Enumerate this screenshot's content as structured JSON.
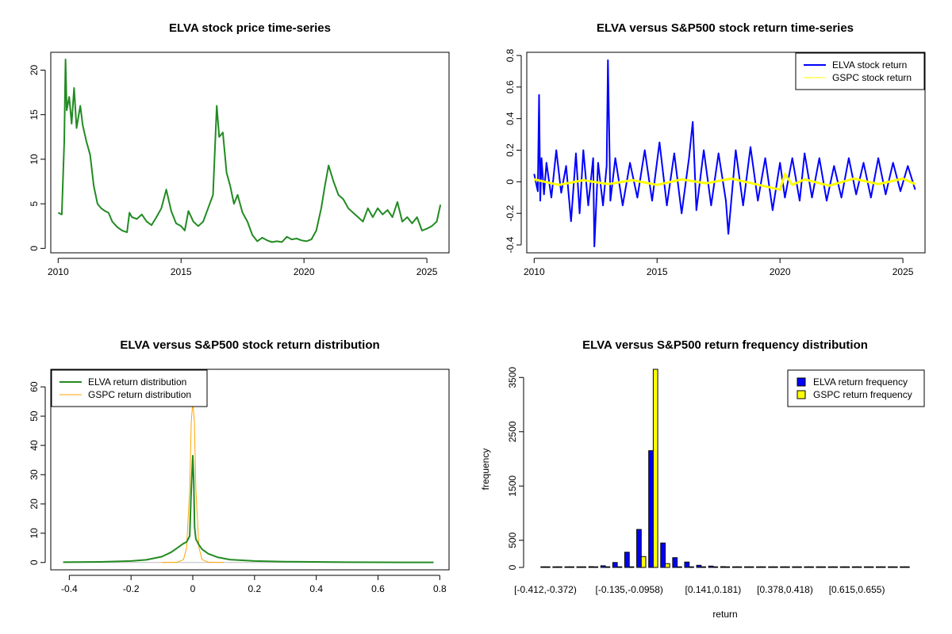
{
  "colors": {
    "elva_price": "#228B22",
    "elva_return": "#0000FF",
    "gspc_return": "#FFFF00",
    "elva_dist": "#228B22",
    "gspc_dist": "#FFA500",
    "elva_bar": "#0000FF",
    "gspc_bar": "#FFFF00"
  },
  "chart_data": [
    {
      "type": "line",
      "title": "ELVA stock price time-series",
      "xlabel": "",
      "ylabel": "",
      "xlim": [
        2009.7,
        2025.9
      ],
      "ylim": [
        -0.5,
        22
      ],
      "x_ticks": [
        2010,
        2015,
        2020,
        2025
      ],
      "y_ticks": [
        0,
        5,
        10,
        15,
        20
      ],
      "series": [
        {
          "x": [
            2010.0,
            2010.15,
            2010.25,
            2010.3,
            2010.35,
            2010.45,
            2010.55,
            2010.65,
            2010.75,
            2010.9,
            2011.0,
            2011.15,
            2011.3,
            2011.45,
            2011.6,
            2011.75,
            2011.9,
            2012.05,
            2012.2,
            2012.4,
            2012.6,
            2012.8,
            2012.9,
            2013.0,
            2013.2,
            2013.4,
            2013.6,
            2013.8,
            2014.0,
            2014.2,
            2014.4,
            2014.6,
            2014.8,
            2015.0,
            2015.15,
            2015.3,
            2015.5,
            2015.7,
            2015.9,
            2016.1,
            2016.3,
            2016.45,
            2016.55,
            2016.7,
            2016.85,
            2017.0,
            2017.15,
            2017.3,
            2017.5,
            2017.7,
            2017.9,
            2018.1,
            2018.3,
            2018.5,
            2018.7,
            2018.9,
            2019.1,
            2019.3,
            2019.5,
            2019.7,
            2019.9,
            2020.1,
            2020.3,
            2020.5,
            2020.7,
            2020.85,
            2021.0,
            2021.2,
            2021.4,
            2021.6,
            2021.8,
            2022.0,
            2022.2,
            2022.4,
            2022.6,
            2022.8,
            2023.0,
            2023.2,
            2023.4,
            2023.6,
            2023.8,
            2024.0,
            2024.2,
            2024.4,
            2024.6,
            2024.8,
            2025.0,
            2025.2,
            2025.4,
            2025.55
          ],
          "y": [
            4.0,
            3.8,
            12.0,
            21.2,
            15.5,
            17.0,
            14.0,
            18.0,
            13.5,
            16.0,
            13.8,
            12.0,
            10.5,
            7.0,
            5.0,
            4.5,
            4.2,
            4.0,
            3.0,
            2.4,
            2.0,
            1.8,
            4.0,
            3.5,
            3.3,
            3.8,
            3.0,
            2.6,
            3.5,
            4.5,
            6.6,
            4.2,
            2.8,
            2.5,
            2.0,
            4.2,
            3.0,
            2.5,
            3.0,
            4.5,
            6.0,
            16.0,
            12.5,
            13.0,
            8.5,
            7.0,
            5.0,
            6.0,
            4.0,
            3.0,
            1.5,
            0.8,
            1.2,
            0.9,
            0.7,
            0.8,
            0.7,
            1.3,
            1.0,
            1.1,
            0.9,
            0.8,
            1.0,
            2.0,
            4.5,
            7.0,
            9.3,
            7.5,
            6.0,
            5.5,
            4.5,
            4.0,
            3.5,
            3.0,
            4.5,
            3.5,
            4.5,
            3.8,
            4.3,
            3.5,
            5.2,
            3.0,
            3.5,
            2.8,
            3.5,
            2.0,
            2.2,
            2.5,
            3.0,
            4.9
          ]
        }
      ]
    },
    {
      "type": "line",
      "title": "ELVA versus S&P500 stock return time-series",
      "xlabel": "",
      "ylabel": "",
      "xlim": [
        2009.7,
        2025.9
      ],
      "ylim": [
        -0.45,
        0.82
      ],
      "x_ticks": [
        2010,
        2015,
        2020,
        2025
      ],
      "y_ticks": [
        -0.4,
        -0.2,
        0.0,
        0.2,
        0.4,
        0.6,
        0.8
      ],
      "legend": {
        "position": "top-right",
        "entries": [
          "ELVA stock return",
          "GSPC stock return"
        ]
      },
      "series": [
        {
          "name": "ELVA stock return",
          "x": [
            2010.0,
            2010.15,
            2010.2,
            2010.25,
            2010.3,
            2010.4,
            2010.5,
            2010.7,
            2010.9,
            2011.1,
            2011.3,
            2011.5,
            2011.7,
            2011.85,
            2012.0,
            2012.2,
            2012.4,
            2012.45,
            2012.6,
            2012.8,
            2012.95,
            2013.0,
            2013.1,
            2013.3,
            2013.6,
            2013.9,
            2014.2,
            2014.5,
            2014.8,
            2015.1,
            2015.4,
            2015.7,
            2016.0,
            2016.3,
            2016.45,
            2016.6,
            2016.9,
            2017.2,
            2017.5,
            2017.8,
            2017.9,
            2018.2,
            2018.5,
            2018.8,
            2019.1,
            2019.4,
            2019.7,
            2020.0,
            2020.2,
            2020.5,
            2020.8,
            2021.0,
            2021.3,
            2021.6,
            2021.9,
            2022.2,
            2022.5,
            2022.8,
            2023.1,
            2023.4,
            2023.7,
            2024.0,
            2024.3,
            2024.6,
            2024.9,
            2025.2,
            2025.5
          ],
          "y": [
            0.05,
            -0.06,
            0.55,
            -0.12,
            0.15,
            -0.08,
            0.12,
            -0.1,
            0.2,
            -0.07,
            0.1,
            -0.25,
            0.18,
            -0.2,
            0.2,
            -0.15,
            0.15,
            -0.41,
            0.12,
            -0.15,
            0.1,
            0.77,
            -0.12,
            0.15,
            -0.15,
            0.12,
            -0.1,
            0.2,
            -0.12,
            0.25,
            -0.15,
            0.18,
            -0.2,
            0.15,
            0.38,
            -0.18,
            0.2,
            -0.15,
            0.18,
            -0.12,
            -0.33,
            0.2,
            -0.15,
            0.22,
            -0.12,
            0.15,
            -0.18,
            0.12,
            -0.1,
            0.15,
            -0.12,
            0.18,
            -0.1,
            0.15,
            -0.12,
            0.1,
            -0.1,
            0.15,
            -0.08,
            0.12,
            -0.1,
            0.15,
            -0.08,
            0.12,
            -0.06,
            0.1,
            -0.05
          ]
        },
        {
          "name": "GSPC stock return",
          "x": [
            2010.0,
            2011.0,
            2012.0,
            2013.0,
            2014.0,
            2015.0,
            2016.0,
            2017.0,
            2018.0,
            2019.0,
            2020.0,
            2020.2,
            2020.5,
            2021.0,
            2022.0,
            2023.0,
            2024.0,
            2025.0,
            2025.5
          ],
          "y": [
            0.015,
            -0.02,
            0.01,
            -0.015,
            0.01,
            -0.02,
            0.015,
            -0.01,
            0.02,
            -0.015,
            -0.05,
            0.05,
            -0.02,
            0.015,
            -0.025,
            0.02,
            -0.015,
            0.02,
            -0.015
          ]
        }
      ]
    },
    {
      "type": "line",
      "title": "ELVA versus S&P500 stock return distribution",
      "xlabel": "",
      "ylabel": "",
      "xlim": [
        -0.46,
        0.83
      ],
      "ylim": [
        -2.5,
        66
      ],
      "x_ticks": [
        -0.4,
        -0.2,
        0.0,
        0.2,
        0.4,
        0.6,
        0.8
      ],
      "y_ticks": [
        0,
        10,
        20,
        30,
        40,
        50,
        60
      ],
      "legend": {
        "position": "top-left",
        "entries": [
          "ELVA return distribution",
          "GSPC return distribution"
        ]
      },
      "series": [
        {
          "name": "ELVA return distribution",
          "x": [
            -0.42,
            -0.3,
            -0.2,
            -0.15,
            -0.1,
            -0.07,
            -0.05,
            -0.03,
            -0.02,
            -0.01,
            -0.005,
            0.0,
            0.003,
            0.006,
            0.01,
            0.02,
            0.03,
            0.05,
            0.08,
            0.12,
            0.2,
            0.3,
            0.5,
            0.7,
            0.78
          ],
          "y": [
            0.1,
            0.2,
            0.5,
            0.9,
            2.0,
            3.5,
            5.0,
            6.5,
            7.0,
            9.0,
            25.0,
            36.5,
            28.0,
            12.0,
            8.0,
            6.0,
            4.5,
            3.0,
            1.8,
            1.0,
            0.5,
            0.3,
            0.1,
            0.05,
            0.05
          ]
        },
        {
          "name": "GSPC return distribution",
          "x": [
            -0.1,
            -0.05,
            -0.03,
            -0.02,
            -0.01,
            -0.005,
            0.0,
            0.005,
            0.01,
            0.02,
            0.03,
            0.05,
            0.1
          ],
          "y": [
            0,
            0.1,
            1.0,
            5.0,
            25.0,
            48.0,
            55.0,
            48.0,
            25.0,
            5.0,
            1.0,
            0.1,
            0
          ]
        }
      ]
    },
    {
      "type": "bar",
      "title": "ELVA versus S&P500 return frequency distribution",
      "xlabel": "return",
      "ylabel": "frequency",
      "ylim": [
        0,
        3650
      ],
      "y_ticks": [
        0,
        500,
        1500,
        2500,
        3500
      ],
      "categories": [
        "[-0.412,-0.372)",
        "",
        "",
        "",
        "",
        "",
        "",
        "[-0.135,-0.0958)",
        "",
        "",
        "",
        "",
        "",
        "",
        "[0.141,0.181)",
        "",
        "",
        "",
        "",
        "",
        "[0.378,0.418)",
        "",
        "",
        "",
        "",
        "",
        "[0.615,0.655)",
        "",
        "",
        "",
        ""
      ],
      "legend": {
        "position": "top-right",
        "entries": [
          "ELVA return frequency",
          "GSPC return frequency"
        ]
      },
      "series": [
        {
          "name": "ELVA return frequency",
          "values": [
            2,
            2,
            3,
            8,
            15,
            30,
            90,
            280,
            700,
            2150,
            450,
            180,
            100,
            40,
            25,
            15,
            10,
            6,
            4,
            3,
            2,
            2,
            2,
            1,
            1,
            1,
            1,
            1,
            1,
            1,
            1
          ]
        },
        {
          "name": "GSPC return frequency",
          "values": [
            0,
            0,
            0,
            0,
            0,
            0,
            0,
            0,
            200,
            3650,
            70,
            0,
            0,
            0,
            0,
            0,
            0,
            0,
            0,
            0,
            0,
            0,
            0,
            0,
            0,
            0,
            0,
            0,
            0,
            0,
            0
          ]
        }
      ]
    }
  ]
}
